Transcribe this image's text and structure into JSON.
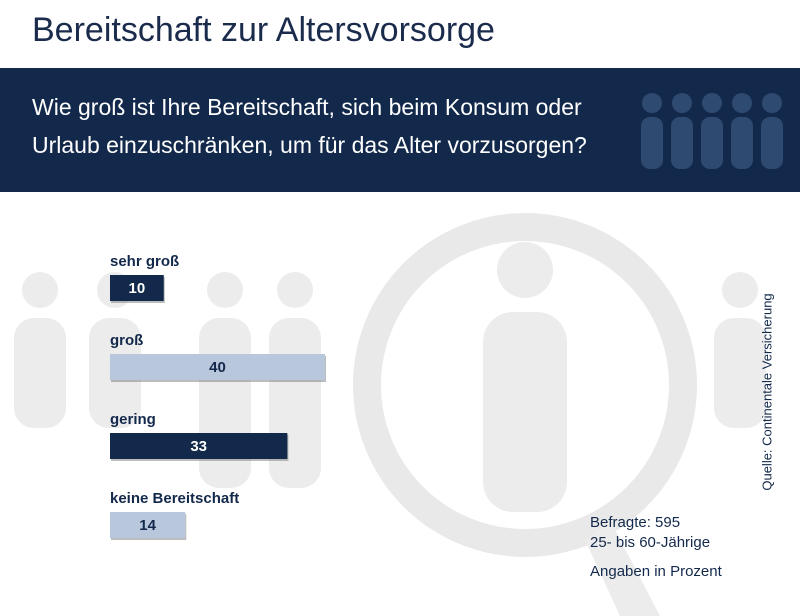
{
  "chart_data": {
    "type": "bar",
    "orientation": "horizontal",
    "title": "Bereitschaft zur Altersvorsorge",
    "subtitle": "Wie groß ist Ihre Bereitschaft, sich beim Konsum oder Urlaub einzuschränken, um für das Alter vorzusorgen?",
    "categories": [
      "sehr groß",
      "groß",
      "gering",
      "keine Bereitschaft"
    ],
    "values": [
      10,
      40,
      33,
      14
    ],
    "colors": [
      "#13294b",
      "#b9c7dc",
      "#13294b",
      "#b9c7dc"
    ],
    "notes": [
      "Befragte: 595",
      "25- bis 60-Jährige",
      "Angaben in Prozent"
    ],
    "source": "Quelle: Continentale Versicherung"
  }
}
